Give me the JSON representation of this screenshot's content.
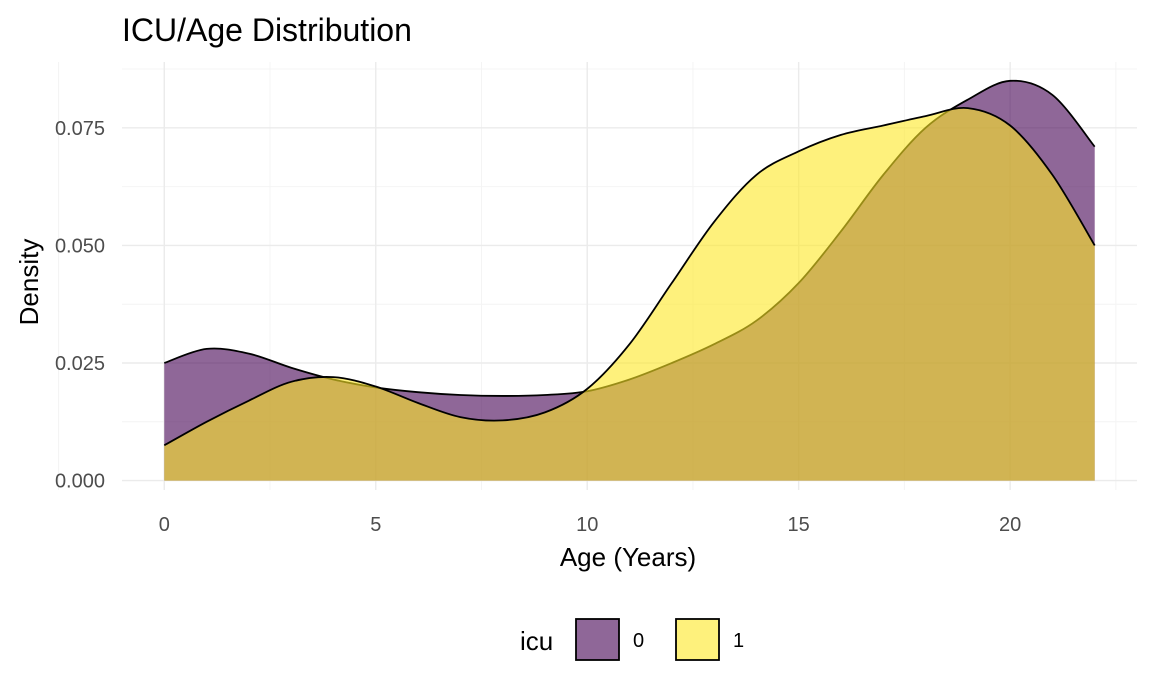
{
  "chart_data": {
    "type": "area",
    "title": "ICU/Age Distribution",
    "xlabel": "Age (Years)",
    "ylabel": "Density",
    "xlim": [
      -1,
      23
    ],
    "ylim": [
      -0.002,
      0.089
    ],
    "x_ticks": [
      0,
      5,
      10,
      15,
      20
    ],
    "y_ticks": [
      0.0,
      0.025,
      0.05,
      0.075
    ],
    "x_tick_labels": [
      "0",
      "5",
      "10",
      "15",
      "20"
    ],
    "y_tick_labels": [
      "0.000",
      "0.025",
      "0.050",
      "0.075"
    ],
    "grid": true,
    "legend_position": "bottom",
    "legend_title": "icu",
    "series": [
      {
        "name": "0",
        "color": "#440154",
        "x": [
          0,
          1,
          2,
          3,
          4,
          5,
          6,
          7,
          8,
          9,
          10,
          11,
          12,
          13,
          14,
          15,
          16,
          17,
          18,
          19,
          20,
          21,
          22
        ],
        "values": [
          0.025,
          0.028,
          0.027,
          0.024,
          0.0215,
          0.0198,
          0.0188,
          0.0182,
          0.018,
          0.0182,
          0.019,
          0.0215,
          0.025,
          0.029,
          0.034,
          0.042,
          0.053,
          0.065,
          0.075,
          0.081,
          0.085,
          0.082,
          0.071
        ]
      },
      {
        "name": "1",
        "color": "#FDE725",
        "x": [
          0,
          1,
          2,
          3,
          4,
          5,
          6,
          7,
          8,
          9,
          10,
          11,
          12,
          13,
          14,
          15,
          16,
          17,
          18,
          19,
          20,
          21,
          22
        ],
        "values": [
          0.0075,
          0.0125,
          0.017,
          0.021,
          0.022,
          0.02,
          0.0165,
          0.0135,
          0.0128,
          0.0145,
          0.0195,
          0.029,
          0.042,
          0.055,
          0.065,
          0.07,
          0.0735,
          0.0755,
          0.0775,
          0.0792,
          0.0755,
          0.065,
          0.05
        ]
      }
    ]
  }
}
